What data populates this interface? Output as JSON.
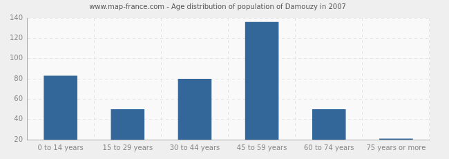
{
  "chart_data": {
    "type": "bar",
    "title": "www.map-france.com - Age distribution of population of Damouzy in 2007",
    "categories": [
      "0 to 14 years",
      "15 to 29 years",
      "30 to 44 years",
      "45 to 59 years",
      "60 to 74 years",
      "75 years or more"
    ],
    "values": [
      83,
      50,
      80,
      136,
      50,
      21
    ],
    "color": "#336699",
    "ylim": [
      20,
      140
    ],
    "yticks": [
      20,
      40,
      60,
      80,
      100,
      120,
      140
    ],
    "grid": true
  }
}
